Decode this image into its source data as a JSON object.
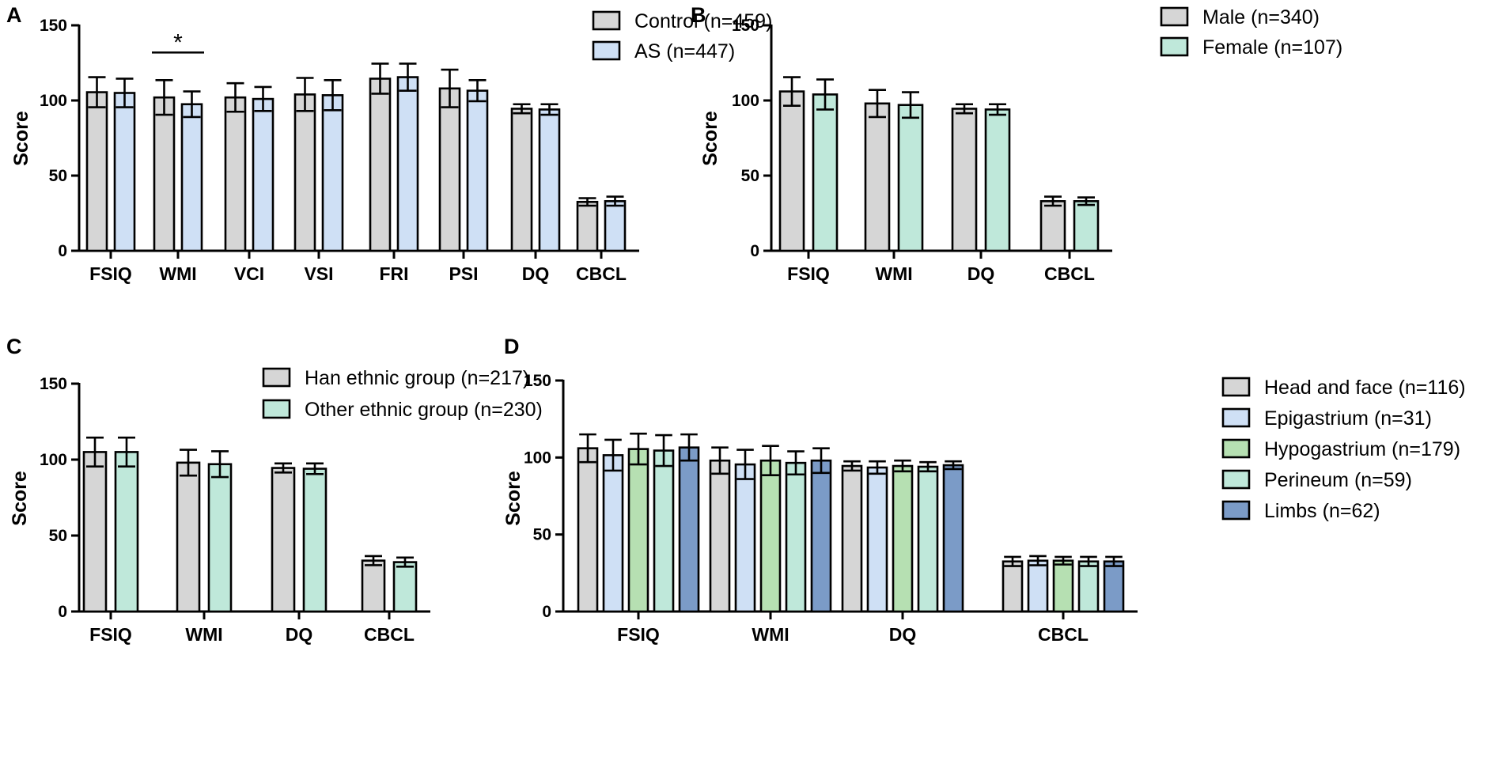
{
  "chart_data": [
    {
      "panel": "A",
      "type": "bar",
      "ylabel": "Score",
      "ylim": [
        0,
        150
      ],
      "yticks": [
        0,
        50,
        100,
        150
      ],
      "categories": [
        "FSIQ",
        "WMI",
        "VCI",
        "VSI",
        "FRI",
        "PSI",
        "DQ",
        "CBCL"
      ],
      "series": [
        {
          "name": "Control (n=459)",
          "color": "#d6d6d6",
          "values": [
            105.5,
            102,
            102,
            104,
            114.5,
            108,
            94.5,
            32.5
          ],
          "errors": [
            10,
            11.5,
            9.5,
            11,
            10,
            12.5,
            3,
            2.5
          ]
        },
        {
          "name": "AS (n=447)",
          "color": "#cfe0f5",
          "values": [
            105,
            97.5,
            101,
            103.5,
            115.5,
            106.5,
            94,
            33
          ],
          "errors": [
            9.5,
            8.5,
            8,
            10,
            9,
            7,
            3.5,
            3
          ]
        }
      ],
      "annotations": [
        {
          "text": "*",
          "category": "WMI"
        }
      ],
      "legend_position": "top-right"
    },
    {
      "panel": "B",
      "type": "bar",
      "ylabel": "Score",
      "ylim": [
        0,
        150
      ],
      "yticks": [
        0,
        50,
        100,
        150
      ],
      "categories": [
        "FSIQ",
        "WMI",
        "DQ",
        "CBCL"
      ],
      "series": [
        {
          "name": "Male (n=340)",
          "color": "#d6d6d6",
          "values": [
            106,
            98,
            94.5,
            33
          ],
          "errors": [
            9.5,
            9,
            3,
            3
          ]
        },
        {
          "name": "Female (n=107)",
          "color": "#bfe8da",
          "values": [
            104,
            97,
            94,
            33
          ],
          "errors": [
            10,
            8.5,
            3.5,
            2.5
          ]
        }
      ],
      "legend_position": "top-right"
    },
    {
      "panel": "C",
      "type": "bar",
      "ylabel": "Score",
      "ylim": [
        0,
        150
      ],
      "yticks": [
        0,
        50,
        100,
        150
      ],
      "categories": [
        "FSIQ",
        "WMI",
        "DQ",
        "CBCL"
      ],
      "series": [
        {
          "name": "Han ethnic group (n=217)",
          "color": "#d6d6d6",
          "values": [
            105,
            98,
            94.5,
            33.5
          ],
          "errors": [
            9.5,
            8.5,
            3,
            3
          ]
        },
        {
          "name": "Other ethnic group (n=230)",
          "color": "#bfe8da",
          "values": [
            105,
            97,
            94,
            32.5
          ],
          "errors": [
            9.5,
            8.5,
            3.5,
            3
          ]
        }
      ],
      "legend_position": "top-right"
    },
    {
      "panel": "D",
      "type": "bar",
      "ylabel": "Score",
      "ylim": [
        0,
        150
      ],
      "yticks": [
        0,
        50,
        100,
        150
      ],
      "categories": [
        "FSIQ",
        "WMI",
        "DQ",
        "CBCL"
      ],
      "series": [
        {
          "name": "Head and face (n=116)",
          "color": "#d6d6d6",
          "values": [
            106,
            98,
            94.5,
            32.5
          ],
          "errors": [
            9,
            8.5,
            3,
            3
          ]
        },
        {
          "name": "Epigastrium (n=31)",
          "color": "#cfe0f5",
          "values": [
            101.5,
            95.5,
            93.5,
            33
          ],
          "errors": [
            10,
            9.5,
            4,
            3
          ]
        },
        {
          "name": "Hypogastrium (n=179)",
          "color": "#b6e0b2",
          "values": [
            105.5,
            98,
            94.5,
            33
          ],
          "errors": [
            10,
            9.5,
            3.5,
            2.5
          ]
        },
        {
          "name": "Perineum (n=59)",
          "color": "#bfe8da",
          "values": [
            104.5,
            96.5,
            94,
            32.5
          ],
          "errors": [
            10,
            7.5,
            3,
            3
          ]
        },
        {
          "name": "Limbs (n=62)",
          "color": "#7b9bc7",
          "values": [
            106.5,
            98,
            95,
            32.5
          ],
          "errors": [
            8.5,
            8,
            2.5,
            3
          ]
        }
      ],
      "legend_position": "top-right"
    }
  ]
}
